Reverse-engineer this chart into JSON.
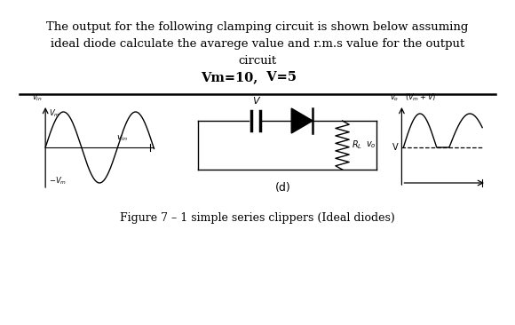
{
  "title_line1": "The output for the following clamping circuit is shown below assuming",
  "title_line2": "ideal diode calculate the avarege value and r.m.s value for the output",
  "title_line3": "circuit",
  "title_line4_a": "Vm=10,",
  "title_line4_b": "  V=5",
  "figure_caption": "Figure 7 – 1 simple series clippers (Ideal diodes)",
  "label_d": "(d)",
  "bg_color": "#ffffff",
  "text_color": "#000000",
  "line_color": "#000000",
  "title_fontsize": 9.5,
  "caption_fontsize": 9.0
}
